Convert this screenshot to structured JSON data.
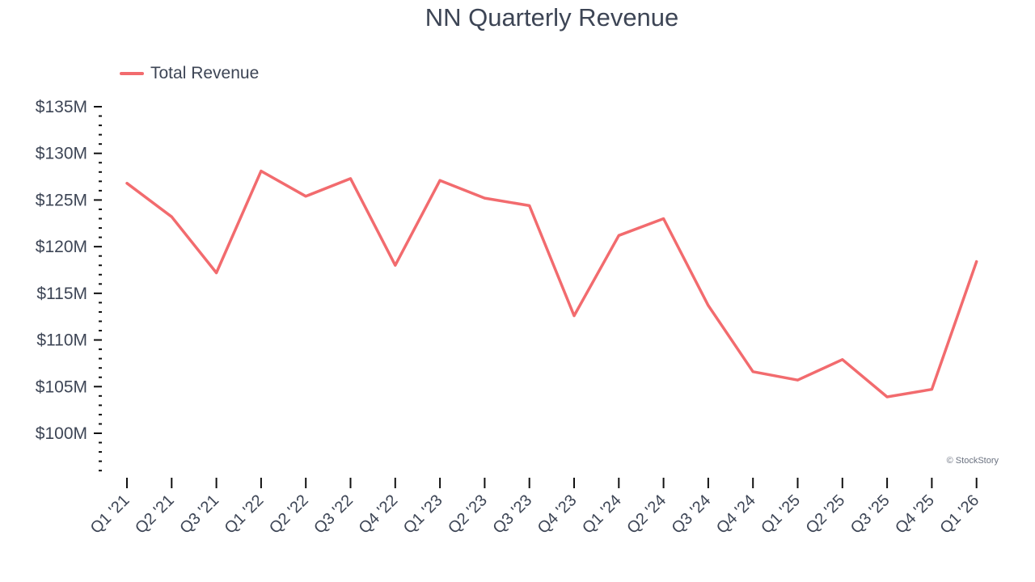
{
  "chart_data": {
    "type": "line",
    "title": "NN Quarterly Revenue",
    "xlabel": "",
    "ylabel": "",
    "categories": [
      "Q1 '21",
      "Q2 '21",
      "Q3 '21",
      "Q1 '22",
      "Q2 '22",
      "Q3 '22",
      "Q4 '22",
      "Q1 '23",
      "Q2 '23",
      "Q3 '23",
      "Q4 '23",
      "Q1 '24",
      "Q2 '24",
      "Q3 '24",
      "Q4 '24",
      "Q1 '25",
      "Q2 '25",
      "Q3 '25",
      "Q4 '25",
      "Q1 '26"
    ],
    "series": [
      {
        "name": "Total Revenue",
        "color": "#f26b6e",
        "values": [
          126.8,
          123.2,
          117.2,
          128.1,
          125.4,
          127.3,
          118.0,
          127.1,
          125.2,
          124.4,
          112.6,
          121.2,
          123.0,
          113.7,
          106.6,
          105.7,
          107.9,
          103.9,
          104.7,
          118.4
        ]
      }
    ],
    "yticks": [
      100,
      105,
      110,
      115,
      120,
      125,
      130,
      135
    ],
    "ytick_labels": [
      "$100M",
      "$105M",
      "$110M",
      "$115M",
      "$120M",
      "$125M",
      "$130M",
      "$135M"
    ],
    "ylim": [
      95.5,
      135
    ],
    "grid": false,
    "legend_position": "top-left"
  },
  "watermark": "© StockStory"
}
